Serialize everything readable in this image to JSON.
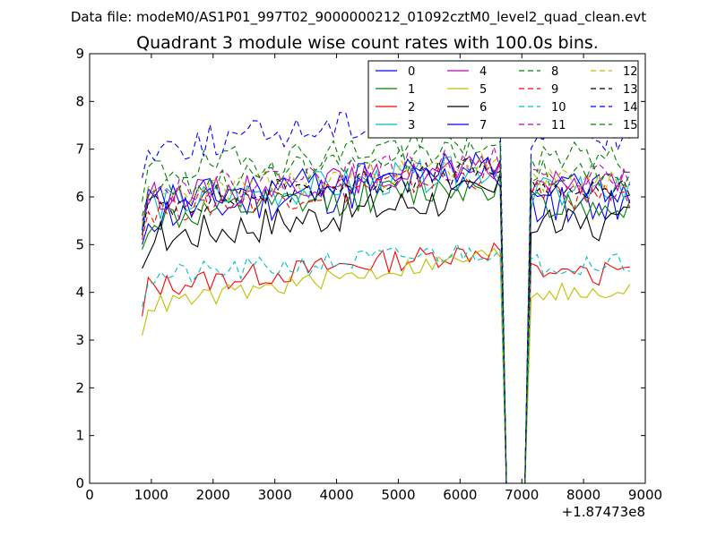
{
  "chart_data": {
    "type": "line",
    "suptitle": "Data file: modeM0/AS1P01_997T02_9000000212_01092cztM0_level2_quad_clean.evt",
    "title": "Quadrant 3 module wise count rates with 100.0s bins.",
    "xlabel": "",
    "ylabel": "",
    "x_offset_label": "+1.87473e8",
    "xlim": [
      0,
      9000
    ],
    "ylim": [
      0,
      9
    ],
    "xticks": [
      "0",
      "1000",
      "2000",
      "3000",
      "4000",
      "5000",
      "6000",
      "7000",
      "8000",
      "9000"
    ],
    "yticks": [
      "0",
      "1",
      "2",
      "3",
      "4",
      "5",
      "6",
      "7",
      "8",
      "9"
    ],
    "grid": false,
    "legend_position": "top-right",
    "legend_columns": 4,
    "gaps": [
      [
        6650,
        7100
      ],
      [
        8780,
        8800
      ]
    ],
    "x_start": 850,
    "x_end": 8800,
    "x_step": 100,
    "series": [
      {
        "name": "0",
        "color": "#0000ff",
        "dash": "solid",
        "base": 5.6,
        "trend": 0.9,
        "noise": 0.45,
        "seed": 11
      },
      {
        "name": "1",
        "color": "#008000",
        "dash": "solid",
        "base": 5.5,
        "trend": 0.8,
        "noise": 0.35,
        "seed": 12
      },
      {
        "name": "2",
        "color": "#ff0000",
        "dash": "solid",
        "base": 4.1,
        "trend": 0.8,
        "noise": 0.25,
        "seed": 13
      },
      {
        "name": "3",
        "color": "#00bfbf",
        "dash": "solid",
        "base": 5.8,
        "trend": 0.8,
        "noise": 0.35,
        "seed": 14
      },
      {
        "name": "4",
        "color": "#bf00bf",
        "dash": "solid",
        "base": 6.0,
        "trend": 0.6,
        "noise": 0.3,
        "seed": 15
      },
      {
        "name": "5",
        "color": "#bfbf00",
        "dash": "solid",
        "base": 3.7,
        "trend": 1.1,
        "noise": 0.2,
        "seed": 16
      },
      {
        "name": "6",
        "color": "#000000",
        "dash": "solid",
        "base": 5.1,
        "trend": 1.0,
        "noise": 0.4,
        "seed": 17
      },
      {
        "name": "7",
        "color": "#0000ff",
        "dash": "solid",
        "base": 5.9,
        "trend": 0.8,
        "noise": 0.35,
        "seed": 18
      },
      {
        "name": "8",
        "color": "#008000",
        "dash": "dashed",
        "base": 6.5,
        "trend": 0.8,
        "noise": 0.35,
        "seed": 19
      },
      {
        "name": "9",
        "color": "#ff0000",
        "dash": "dashed",
        "base": 5.7,
        "trend": 0.8,
        "noise": 0.3,
        "seed": 20
      },
      {
        "name": "10",
        "color": "#00bfbf",
        "dash": "dashed",
        "base": 4.3,
        "trend": 0.6,
        "noise": 0.25,
        "seed": 21
      },
      {
        "name": "11",
        "color": "#bf00bf",
        "dash": "dashed",
        "base": 6.1,
        "trend": 0.7,
        "noise": 0.3,
        "seed": 22
      },
      {
        "name": "12",
        "color": "#bfbf00",
        "dash": "dashed",
        "base": 6.0,
        "trend": 0.7,
        "noise": 0.3,
        "seed": 23
      },
      {
        "name": "13",
        "color": "#000000",
        "dash": "dashed",
        "base": 5.8,
        "trend": 0.8,
        "noise": 0.3,
        "seed": 24
      },
      {
        "name": "14",
        "color": "#0000ff",
        "dash": "dashed",
        "base": 7.0,
        "trend": 0.9,
        "noise": 0.35,
        "seed": 25
      },
      {
        "name": "15",
        "color": "#008000",
        "dash": "dashed",
        "base": 6.2,
        "trend": 0.8,
        "noise": 0.3,
        "seed": 26
      }
    ]
  }
}
